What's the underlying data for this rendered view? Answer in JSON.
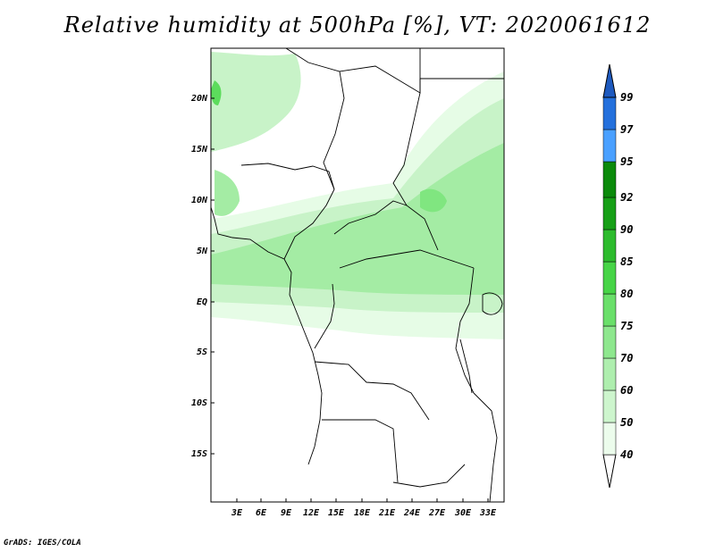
{
  "title": "Relative humidity at 500hPa [%], VT: 2020061612",
  "credit": "GrADS: IGES/COLA",
  "map": {
    "lat_labels": [
      "20N",
      "15N",
      "10N",
      "5N",
      "EQ",
      "5S",
      "10S",
      "15S"
    ],
    "lon_labels": [
      "3E",
      "6E",
      "9E",
      "12E",
      "15E",
      "18E",
      "21E",
      "24E",
      "27E",
      "30E",
      "33E"
    ],
    "shading_colors": [
      "#e6fce6",
      "#c8f3c8",
      "#a4eca4",
      "#80e680",
      "#5cdc5c"
    ]
  },
  "colorbar": {
    "levels": [
      "40",
      "50",
      "60",
      "70",
      "75",
      "80",
      "85",
      "90",
      "92",
      "95",
      "97",
      "99"
    ],
    "colors": [
      "#ffffff",
      "#ecfcec",
      "#cdf5cd",
      "#aeeeae",
      "#8ee78e",
      "#6adf6a",
      "#47d447",
      "#2dbb2d",
      "#169f16",
      "#0b8a0b",
      "#4aa0ff",
      "#2470dc",
      "#1e5abf"
    ]
  }
}
